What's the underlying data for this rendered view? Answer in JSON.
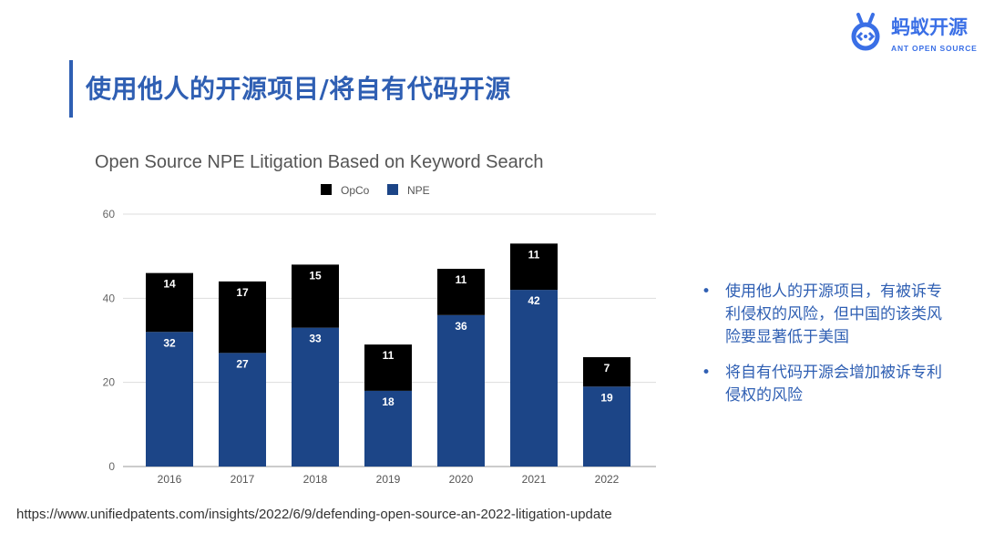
{
  "title": "使用他人的开源项目/将自有代码开源",
  "logo": {
    "cn": "蚂蚁开源",
    "en": "ANT OPEN SOURCE"
  },
  "bullets": [
    "使用他人的开源项目，有被诉专利侵权的风险，但中国的该类风险要显著低于美国",
    "将自有代码开源会增加被诉专利侵权的风险"
  ],
  "source": "https://www.unifiedpatents.com/insights/2022/6/9/defending-open-source-an-2022-litigation-update",
  "chart_data": {
    "type": "bar",
    "stacked": true,
    "title": "Open Source NPE Litigation Based on Keyword Search",
    "categories": [
      "2016",
      "2017",
      "2018",
      "2019",
      "2020",
      "2021",
      "2022"
    ],
    "series": [
      {
        "name": "NPE",
        "color": "#1c4587",
        "values": [
          32,
          27,
          33,
          18,
          36,
          42,
          19
        ]
      },
      {
        "name": "OpCo",
        "color": "#000000",
        "values": [
          14,
          17,
          15,
          11,
          11,
          11,
          7
        ]
      }
    ],
    "legend_order": [
      "OpCo",
      "NPE"
    ],
    "legend_position": "top",
    "ylim": [
      0,
      60
    ],
    "yticks": [
      0,
      20,
      40,
      60
    ],
    "grid": true,
    "xlabel": "",
    "ylabel": ""
  }
}
